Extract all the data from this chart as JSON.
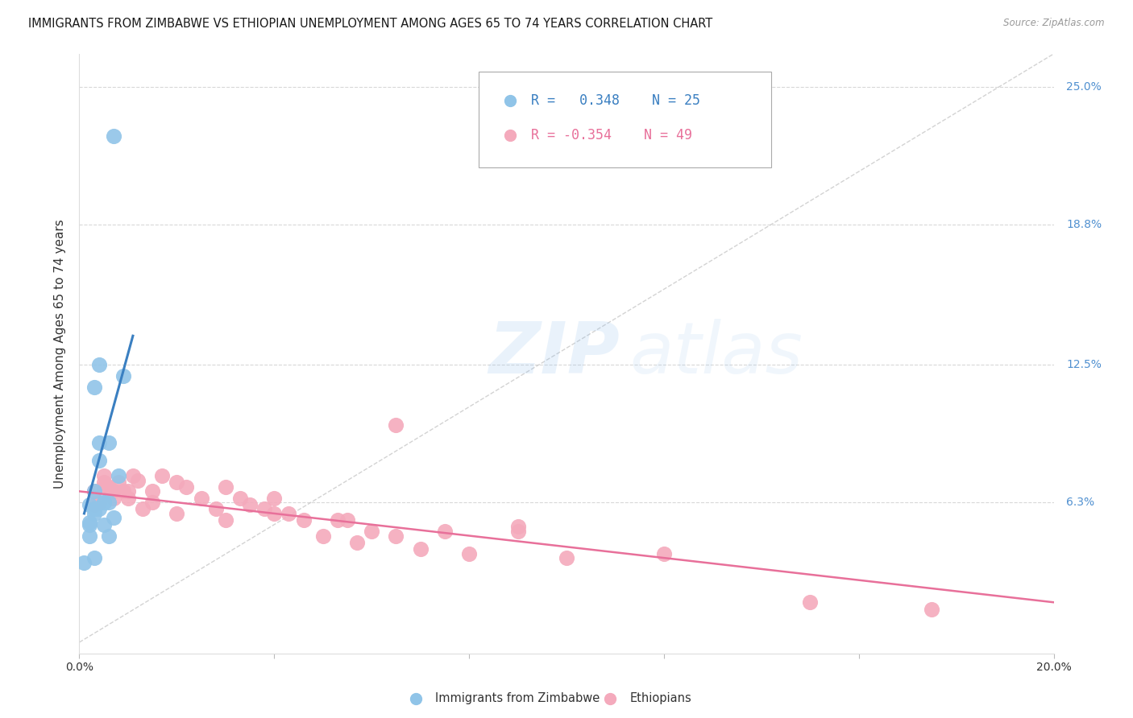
{
  "title": "IMMIGRANTS FROM ZIMBABWE VS ETHIOPIAN UNEMPLOYMENT AMONG AGES 65 TO 74 YEARS CORRELATION CHART",
  "source": "Source: ZipAtlas.com",
  "ylabel": "Unemployment Among Ages 65 to 74 years",
  "xlim": [
    0.0,
    0.2
  ],
  "ylim": [
    -0.005,
    0.265
  ],
  "right_ytick_labels": [
    "6.3%",
    "12.5%",
    "18.8%",
    "25.0%"
  ],
  "right_ytick_positions": [
    0.063,
    0.125,
    0.188,
    0.25
  ],
  "xtick_positions": [
    0.0,
    0.04,
    0.08,
    0.12,
    0.16,
    0.2
  ],
  "xtick_labels": [
    "0.0%",
    "",
    "",
    "",
    "",
    "20.0%"
  ],
  "zimbabwe_dot_color": "#90c4e8",
  "ethiopian_dot_color": "#f4aabc",
  "zimbabwe_line_color": "#3a7fc1",
  "ethiopian_line_color": "#e8709a",
  "reference_line_color": "#c8c8c8",
  "R_zimbabwe": 0.348,
  "N_zimbabwe": 25,
  "R_ethiopian": -0.354,
  "N_ethiopian": 49,
  "legend_label_zimbabwe": "Immigrants from Zimbabwe",
  "legend_label_ethiopian": "Ethiopians",
  "watermark_text": "ZIPatlas",
  "zimbabwe_x": [
    0.007,
    0.002,
    0.003,
    0.004,
    0.004,
    0.005,
    0.003,
    0.002,
    0.002,
    0.006,
    0.006,
    0.008,
    0.004,
    0.003,
    0.005,
    0.007,
    0.009,
    0.003,
    0.003,
    0.002,
    0.001,
    0.004,
    0.005,
    0.006,
    0.003
  ],
  "zimbabwe_y": [
    0.228,
    0.062,
    0.06,
    0.09,
    0.082,
    0.063,
    0.068,
    0.054,
    0.048,
    0.063,
    0.09,
    0.075,
    0.125,
    0.115,
    0.063,
    0.056,
    0.12,
    0.058,
    0.038,
    0.053,
    0.036,
    0.06,
    0.053,
    0.048,
    0.06
  ],
  "ethiopian_x": [
    0.003,
    0.004,
    0.005,
    0.005,
    0.006,
    0.007,
    0.008,
    0.009,
    0.01,
    0.011,
    0.012,
    0.013,
    0.015,
    0.017,
    0.02,
    0.022,
    0.025,
    0.028,
    0.03,
    0.033,
    0.035,
    0.038,
    0.04,
    0.043,
    0.046,
    0.05,
    0.053,
    0.057,
    0.06,
    0.065,
    0.07,
    0.075,
    0.08,
    0.09,
    0.1,
    0.003,
    0.005,
    0.007,
    0.01,
    0.015,
    0.02,
    0.03,
    0.04,
    0.055,
    0.065,
    0.09,
    0.12,
    0.15,
    0.175
  ],
  "ethiopian_y": [
    0.068,
    0.063,
    0.072,
    0.075,
    0.07,
    0.068,
    0.072,
    0.068,
    0.065,
    0.075,
    0.073,
    0.06,
    0.068,
    0.075,
    0.058,
    0.07,
    0.065,
    0.06,
    0.07,
    0.065,
    0.062,
    0.06,
    0.065,
    0.058,
    0.055,
    0.048,
    0.055,
    0.045,
    0.05,
    0.048,
    0.042,
    0.05,
    0.04,
    0.052,
    0.038,
    0.062,
    0.07,
    0.065,
    0.068,
    0.063,
    0.072,
    0.055,
    0.058,
    0.055,
    0.098,
    0.05,
    0.04,
    0.018,
    0.015
  ],
  "title_fontsize": 10.5,
  "axis_label_fontsize": 11,
  "tick_fontsize": 10,
  "legend_fontsize": 12,
  "right_label_color": "#5090d0",
  "legend_zim_color": "#3a7fc1",
  "legend_eth_color": "#e8709a"
}
